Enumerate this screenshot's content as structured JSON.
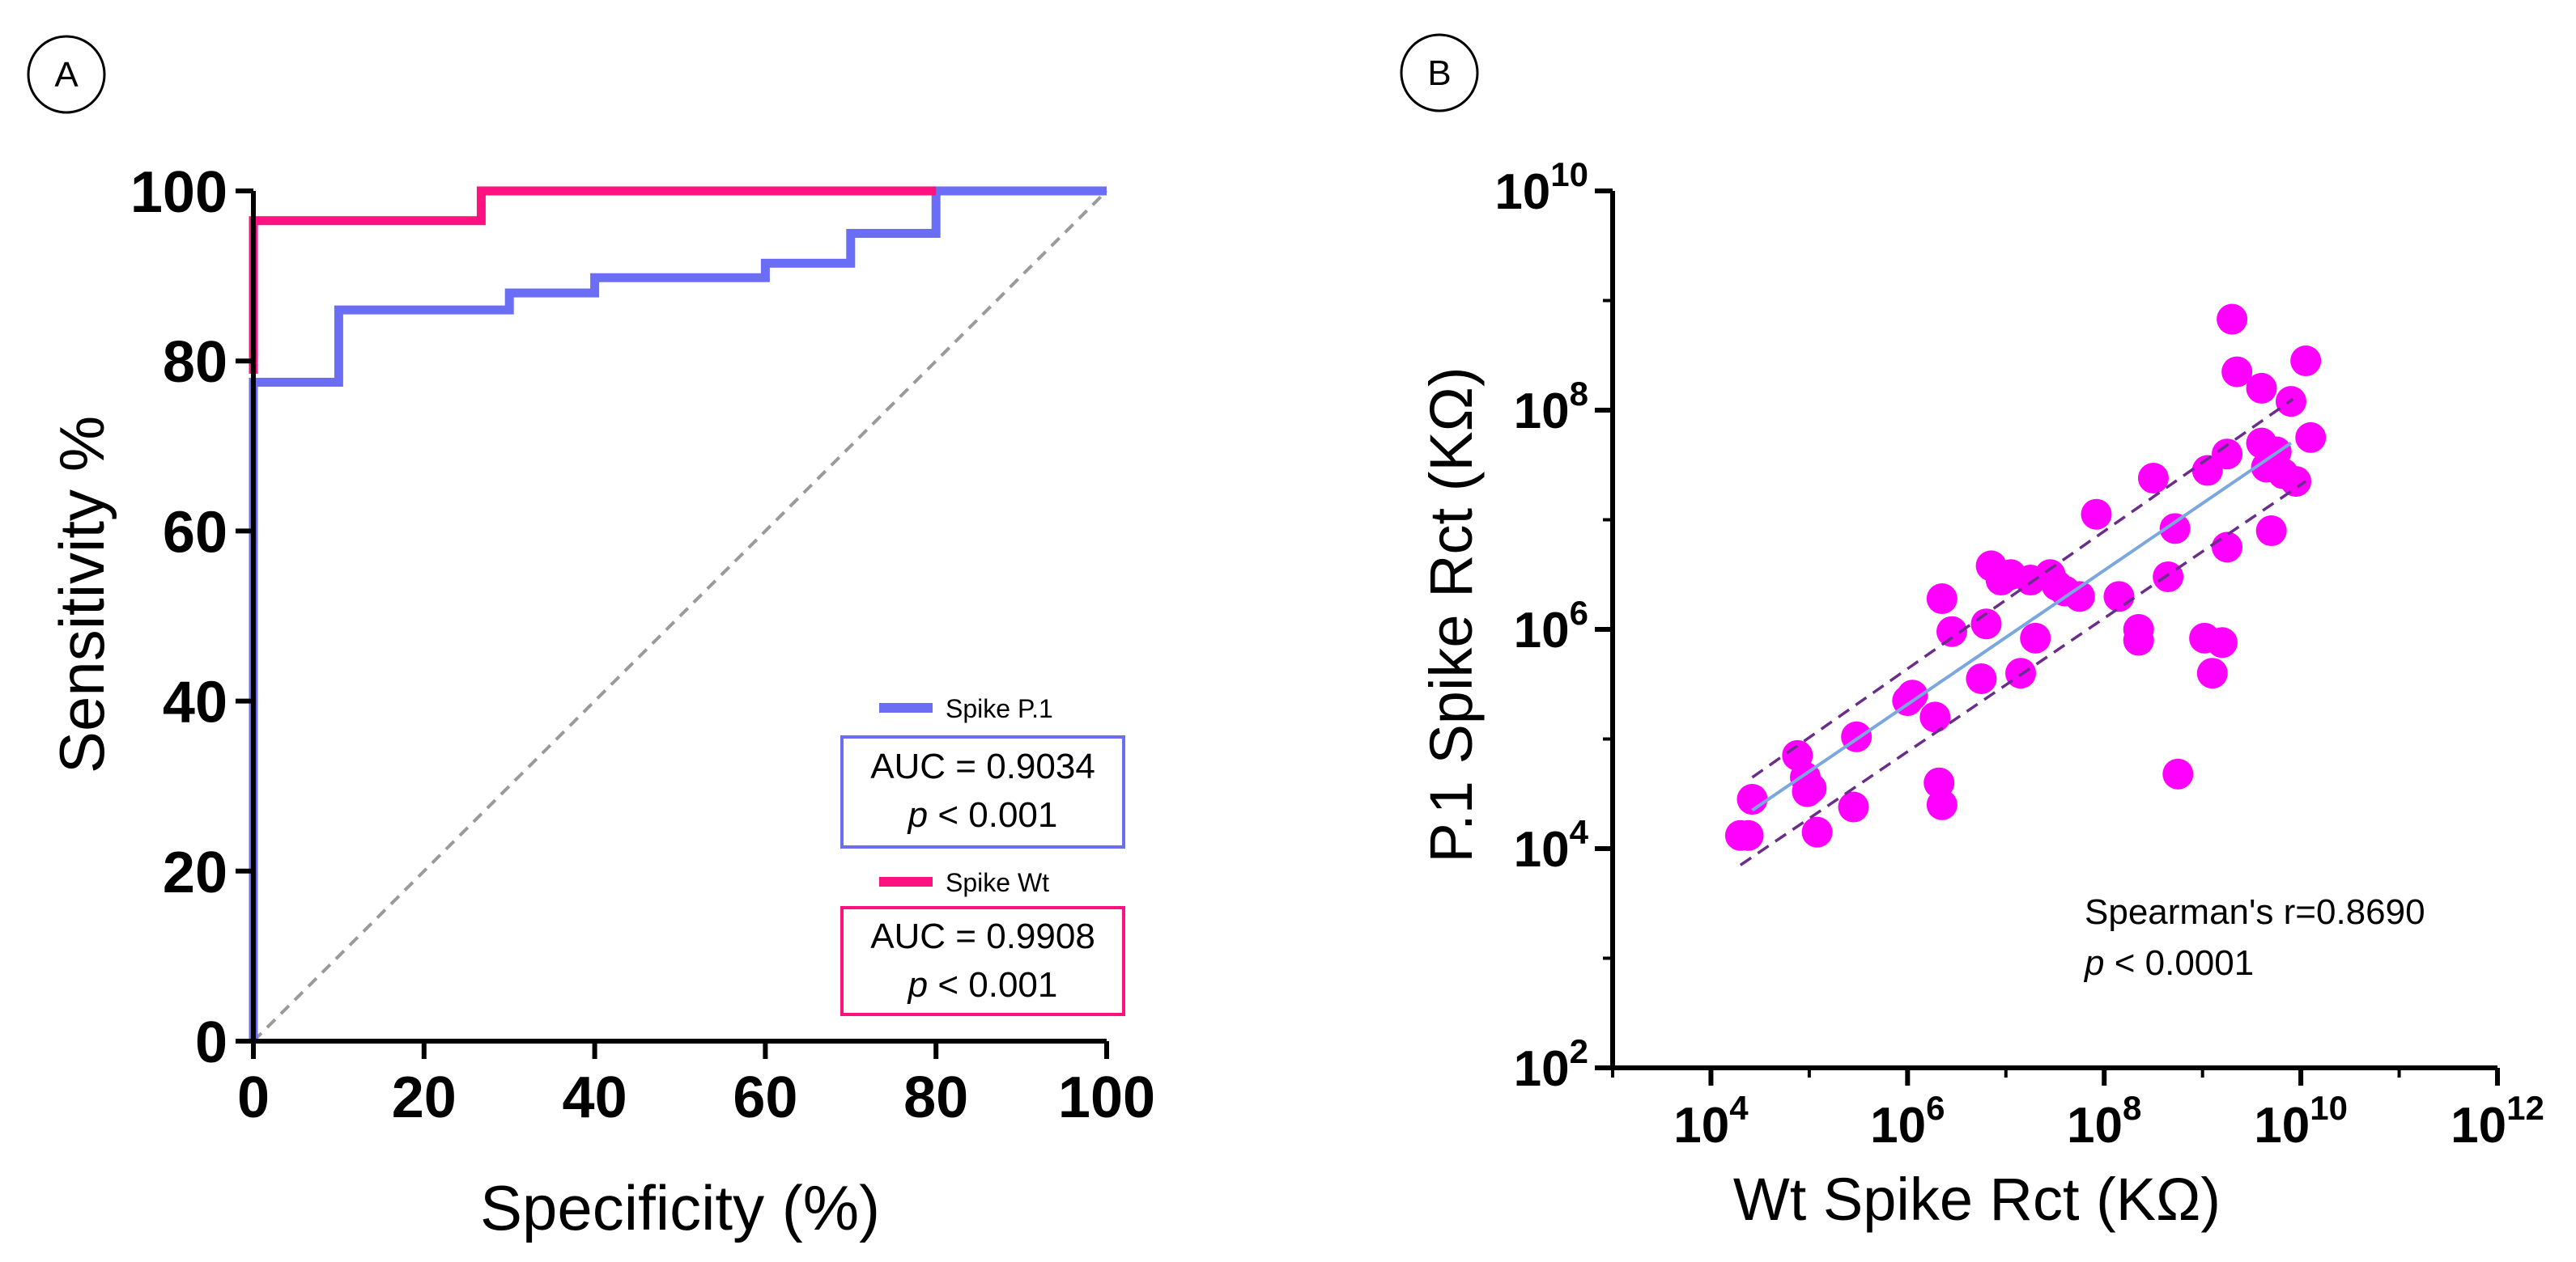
{
  "panel_labels": {
    "a": "A",
    "b": "B"
  },
  "colors": {
    "p1": "#6b6ef5",
    "wt": "#ff1180",
    "reference": "#9a9a9a",
    "scatter": "#ff00ff",
    "fit": "#7ba7df",
    "confidence": "#6a2d8a",
    "axis": "#000000"
  },
  "chart_data": [
    {
      "panel": "A",
      "type": "line",
      "title": "",
      "xlabel": "Specificity (%)",
      "ylabel": "Sensitivity %",
      "xlim": [
        0,
        100
      ],
      "ylim": [
        0,
        100
      ],
      "xticks": [
        "0",
        "20",
        "40",
        "60",
        "80",
        "100"
      ],
      "yticks": [
        "0",
        "20",
        "40",
        "60",
        "80",
        "100"
      ],
      "grid": false,
      "series": [
        {
          "name": "Spike P.1",
          "color_key": "p1",
          "points": [
            [
              0,
              0
            ],
            [
              0,
              77.5
            ],
            [
              10,
              77.5
            ],
            [
              10,
              86
            ],
            [
              30,
              86
            ],
            [
              30,
              88
            ],
            [
              40,
              88
            ],
            [
              40,
              89.8
            ],
            [
              60,
              89.8
            ],
            [
              60,
              91.5
            ],
            [
              70,
              91.5
            ],
            [
              70,
              95
            ],
            [
              80,
              95
            ],
            [
              80,
              100
            ],
            [
              100,
              100
            ]
          ],
          "auc_text": "AUC = 0.9034",
          "p_label": "p",
          "p_rest": " < 0.001"
        },
        {
          "name": "Spike Wt",
          "color_key": "wt",
          "points": [
            [
              0,
              78.5
            ],
            [
              0,
              96.5
            ],
            [
              26.7,
              96.5
            ],
            [
              26.7,
              100
            ],
            [
              80,
              100
            ]
          ],
          "auc_text": "AUC = 0.9908",
          "p_label": "p",
          "p_rest": " < 0.001"
        }
      ],
      "reference_line": {
        "from": [
          0,
          0
        ],
        "to": [
          100,
          100
        ],
        "style": "dashed"
      },
      "legend_position": "bottom-right"
    },
    {
      "panel": "B",
      "type": "scatter",
      "title": "",
      "xlabel": "Wt Spike Rct (KΩ)",
      "ylabel": "P.1 Spike Rct (KΩ)",
      "xscale": "log",
      "yscale": "log",
      "xlim_log10": [
        3,
        12
      ],
      "ylim_log10": [
        2,
        10
      ],
      "xticks": [
        {
          "base": "10",
          "exp": "4",
          "log": 4
        },
        {
          "base": "10",
          "exp": "6",
          "log": 6
        },
        {
          "base": "10",
          "exp": "8",
          "log": 8
        },
        {
          "base": "10",
          "exp": "10",
          "log": 10
        },
        {
          "base": "10",
          "exp": "12",
          "log": 12
        }
      ],
      "yticks": [
        {
          "base": "10",
          "exp": "2",
          "log": 2
        },
        {
          "base": "10",
          "exp": "4",
          "log": 4
        },
        {
          "base": "10",
          "exp": "6",
          "log": 6
        },
        {
          "base": "10",
          "exp": "8",
          "log": 8
        },
        {
          "base": "10",
          "exp": "10",
          "log": 10
        }
      ],
      "grid": false,
      "points_log10": [
        [
          4.3,
          4.12
        ],
        [
          4.38,
          4.12
        ],
        [
          4.42,
          4.45
        ],
        [
          4.88,
          4.85
        ],
        [
          4.96,
          4.65
        ],
        [
          4.98,
          4.52
        ],
        [
          5.02,
          4.55
        ],
        [
          5.08,
          4.15
        ],
        [
          5.45,
          4.38
        ],
        [
          5.48,
          5.02
        ],
        [
          6.0,
          5.35
        ],
        [
          6.05,
          5.4
        ],
        [
          6.28,
          5.2
        ],
        [
          6.32,
          4.6
        ],
        [
          6.35,
          4.4
        ],
        [
          6.35,
          6.28
        ],
        [
          6.45,
          5.98
        ],
        [
          6.75,
          5.55
        ],
        [
          6.8,
          6.05
        ],
        [
          6.85,
          6.58
        ],
        [
          6.95,
          6.45
        ],
        [
          7.05,
          6.5
        ],
        [
          7.15,
          5.6
        ],
        [
          7.25,
          6.45
        ],
        [
          7.3,
          5.92
        ],
        [
          7.45,
          6.5
        ],
        [
          7.52,
          6.4
        ],
        [
          7.6,
          6.35
        ],
        [
          7.75,
          6.3
        ],
        [
          7.92,
          7.05
        ],
        [
          8.15,
          6.3
        ],
        [
          8.35,
          6.0
        ],
        [
          8.35,
          5.9
        ],
        [
          8.5,
          7.38
        ],
        [
          8.65,
          6.48
        ],
        [
          8.72,
          6.92
        ],
        [
          8.75,
          4.68
        ],
        [
          9.02,
          5.92
        ],
        [
          9.05,
          7.45
        ],
        [
          9.1,
          5.6
        ],
        [
          9.2,
          5.88
        ],
        [
          9.25,
          7.6
        ],
        [
          9.25,
          6.75
        ],
        [
          9.3,
          8.83
        ],
        [
          9.35,
          8.35
        ],
        [
          9.6,
          8.2
        ],
        [
          9.6,
          7.7
        ],
        [
          9.65,
          7.48
        ],
        [
          9.7,
          6.9
        ],
        [
          9.75,
          7.62
        ],
        [
          9.82,
          7.42
        ],
        [
          9.9,
          8.08
        ],
        [
          9.95,
          7.35
        ],
        [
          10.1,
          7.75
        ],
        [
          10.05,
          8.45
        ]
      ],
      "fit_line_log10": {
        "from": [
          4.42,
          4.35
        ],
        "to": [
          9.9,
          7.7
        ]
      },
      "confidence_bands_log10": [
        {
          "from": [
            4.42,
            4.65
          ],
          "to": [
            9.92,
            8.1
          ]
        },
        {
          "from": [
            4.3,
            3.85
          ],
          "to": [
            10.05,
            7.35
          ]
        }
      ],
      "annotation": {
        "line1": "Spearman's r=0.8690",
        "p_label": "p",
        "p_rest": " < 0.0001"
      }
    }
  ]
}
